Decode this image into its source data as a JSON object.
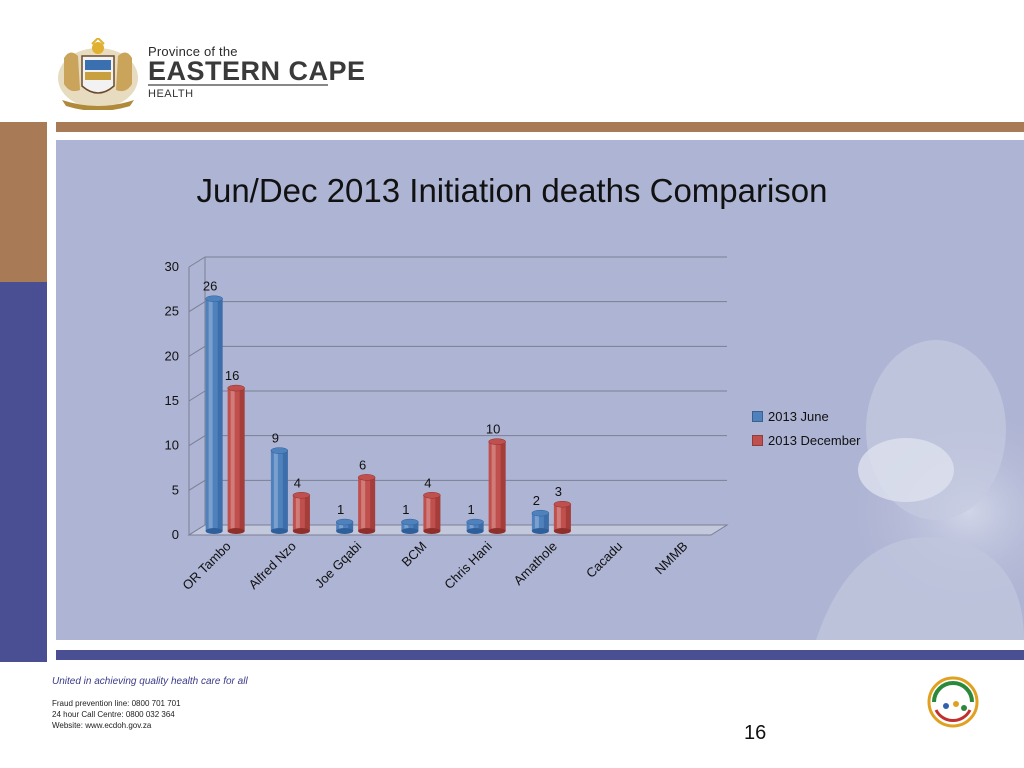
{
  "header": {
    "logo_line1": "Province of the",
    "logo_line2": "EASTERN CAPE",
    "logo_line3": "HEALTH"
  },
  "slide": {
    "title": "Jun/Dec 2013 Initiation deaths Comparison",
    "page_number": "16"
  },
  "footer": {
    "tagline": "United in achieving quality health care for all",
    "fraud_line": "Fraud prevention line: 0800 701 701",
    "call_centre": "24 hour Call Centre: 0800 032 364",
    "website": "Website: www.ecdoh.gov.za"
  },
  "colors": {
    "june": "#4f81bd",
    "december": "#c0504d",
    "panel": "#aeb4d3",
    "brown_band": "#a87a56",
    "blue_band": "#4a4f93"
  },
  "chart_data": {
    "type": "bar",
    "categories": [
      "OR Tambo",
      "Alfred Nzo",
      "Joe Gqabi",
      "BCM",
      "Chris Hani",
      "Amathole",
      "Cacadu",
      "NMMB"
    ],
    "series": [
      {
        "name": "2013 June",
        "values": [
          26,
          9,
          1,
          1,
          1,
          2,
          null,
          null
        ]
      },
      {
        "name": "2013 December",
        "values": [
          16,
          4,
          6,
          4,
          10,
          3,
          null,
          null
        ]
      }
    ],
    "y_ticks": [
      "0",
      "5",
      "10",
      "15",
      "20",
      "25",
      "30"
    ],
    "ylim": [
      0,
      30
    ],
    "grid": true,
    "legend_position": "right",
    "data_labels": true
  }
}
